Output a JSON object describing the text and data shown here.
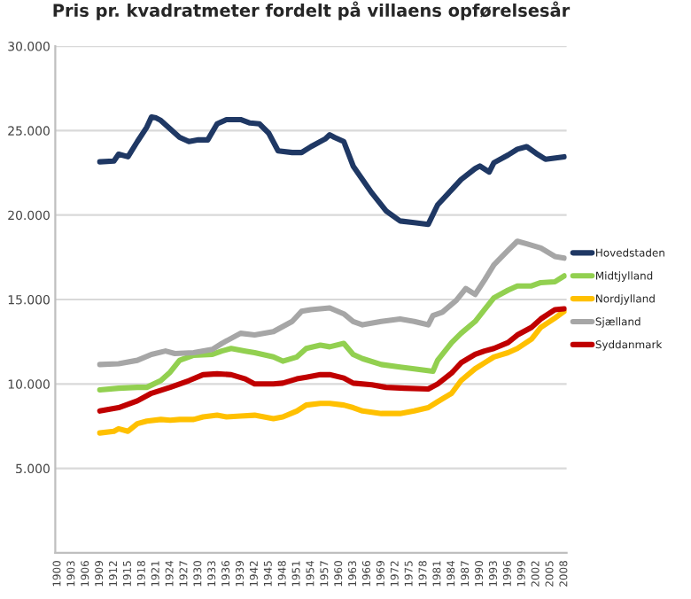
{
  "chart_data": {
    "type": "line",
    "title": "Pris pr. kvadratmeter fordelt på villaens opførelsesår",
    "xlim": [
      1899.5,
      2008.5
    ],
    "xticks": [
      1900,
      1903,
      1906,
      1909,
      1912,
      1915,
      1918,
      1921,
      1924,
      1927,
      1930,
      1933,
      1936,
      1939,
      1942,
      1945,
      1948,
      1951,
      1954,
      1957,
      1960,
      1963,
      1966,
      1969,
      1972,
      1975,
      1978,
      1981,
      1984,
      1987,
      1990,
      1993,
      1996,
      1999,
      2002,
      2005,
      2008
    ],
    "ylim": [
      0,
      30000
    ],
    "yticks": [
      {
        "value": 5000,
        "label": "5.000"
      },
      {
        "value": 10000,
        "label": "10.000"
      },
      {
        "value": 15000,
        "label": "15.000"
      },
      {
        "value": 20000,
        "label": "20.000"
      },
      {
        "value": 25000,
        "label": "25.000"
      },
      {
        "value": 30000,
        "label": "30.000"
      }
    ],
    "grid": "y",
    "legend": "right",
    "marker": "none",
    "line_style": "solid",
    "series": [
      {
        "name": "Hovedstaden",
        "color": "#1f3864",
        "x": [
          1909,
          1912,
          1913,
          1915,
          1917,
          1919,
          1920,
          1921,
          1922,
          1924,
          1926,
          1928,
          1930,
          1932,
          1934,
          1936,
          1939,
          1941,
          1943,
          1945,
          1947,
          1950,
          1952,
          1954,
          1957,
          1958,
          1959,
          1961,
          1963,
          1967,
          1970,
          1973,
          1976,
          1979,
          1981,
          1984,
          1986,
          1989,
          1990,
          1992,
          1993,
          1996,
          1998,
          2000,
          2002,
          2004,
          2008
        ],
        "values": [
          23150,
          23200,
          23600,
          23450,
          24350,
          25200,
          25800,
          25750,
          25600,
          25100,
          24600,
          24350,
          24450,
          24450,
          25400,
          25650,
          25650,
          25450,
          25400,
          24850,
          23800,
          23700,
          23700,
          24050,
          24500,
          24750,
          24600,
          24350,
          22900,
          21300,
          20250,
          19650,
          19550,
          19450,
          20600,
          21500,
          22100,
          22750,
          22900,
          22550,
          23100,
          23550,
          23900,
          24050,
          23650,
          23300,
          23450
        ]
      },
      {
        "name": "Midtjylland",
        "color": "#92d050",
        "x": [
          1909,
          1913,
          1917,
          1919,
          1922,
          1924,
          1926,
          1929,
          1933,
          1935,
          1937,
          1940,
          1942,
          1946,
          1948,
          1951,
          1953,
          1956,
          1958,
          1961,
          1963,
          1965,
          1969,
          1973,
          1976,
          1980,
          1981,
          1984,
          1986,
          1989,
          1991,
          1993,
          1996,
          1998,
          2001,
          2003,
          2006,
          2008
        ],
        "values": [
          9650,
          9750,
          9800,
          9800,
          10200,
          10700,
          11400,
          11700,
          11750,
          11950,
          12100,
          11950,
          11850,
          11600,
          11350,
          11600,
          12100,
          12300,
          12200,
          12400,
          11750,
          11500,
          11150,
          11000,
          10900,
          10750,
          11400,
          12450,
          13000,
          13700,
          14400,
          15100,
          15550,
          15800,
          15800,
          16000,
          16050,
          16400
        ]
      },
      {
        "name": "Nordjylland",
        "color": "#ffc000",
        "x": [
          1909,
          1912,
          1913,
          1915,
          1917,
          1919,
          1922,
          1924,
          1926,
          1929,
          1931,
          1934,
          1936,
          1939,
          1942,
          1946,
          1948,
          1951,
          1953,
          1956,
          1958,
          1961,
          1963,
          1965,
          1969,
          1973,
          1976,
          1979,
          1981,
          1984,
          1986,
          1989,
          1991,
          1993,
          1996,
          1998,
          2001,
          2003,
          2006,
          2008
        ],
        "values": [
          7100,
          7200,
          7350,
          7200,
          7650,
          7800,
          7900,
          7850,
          7900,
          7900,
          8050,
          8150,
          8050,
          8100,
          8150,
          7950,
          8050,
          8400,
          8750,
          8850,
          8850,
          8750,
          8600,
          8400,
          8250,
          8250,
          8400,
          8600,
          8950,
          9450,
          10200,
          10900,
          11250,
          11600,
          11850,
          12100,
          12650,
          13350,
          13900,
          14300
        ]
      },
      {
        "name": "Sjælland",
        "color": "#a6a6a6",
        "x": [
          1909,
          1913,
          1917,
          1920,
          1923,
          1925,
          1929,
          1933,
          1935,
          1939,
          1942,
          1946,
          1950,
          1952,
          1954,
          1958,
          1961,
          1963,
          1965,
          1969,
          1973,
          1976,
          1979,
          1980,
          1982,
          1985,
          1987,
          1989,
          1991,
          1993,
          1996,
          1998,
          2000,
          2003,
          2006,
          2008
        ],
        "values": [
          11150,
          11200,
          11400,
          11750,
          11950,
          11800,
          11850,
          12050,
          12400,
          13000,
          12900,
          13100,
          13700,
          14300,
          14400,
          14500,
          14150,
          13700,
          13500,
          13700,
          13850,
          13700,
          13500,
          14050,
          14250,
          14950,
          15650,
          15300,
          16150,
          17050,
          17900,
          18450,
          18300,
          18050,
          17550,
          17450
        ]
      },
      {
        "name": "Syddanmark",
        "color": "#c00000",
        "x": [
          1909,
          1913,
          1917,
          1920,
          1924,
          1928,
          1931,
          1934,
          1937,
          1940,
          1942,
          1946,
          1948,
          1951,
          1953,
          1956,
          1958,
          1961,
          1963,
          1967,
          1970,
          1974,
          1979,
          1981,
          1984,
          1986,
          1989,
          1991,
          1993,
          1996,
          1998,
          2001,
          2003,
          2006,
          2008
        ],
        "values": [
          8400,
          8600,
          9000,
          9450,
          9800,
          10200,
          10550,
          10600,
          10550,
          10300,
          10000,
          10000,
          10050,
          10300,
          10400,
          10550,
          10550,
          10350,
          10050,
          9950,
          9800,
          9750,
          9700,
          10000,
          10650,
          11250,
          11750,
          11950,
          12100,
          12450,
          12900,
          13350,
          13850,
          14400,
          14450
        ]
      }
    ]
  }
}
